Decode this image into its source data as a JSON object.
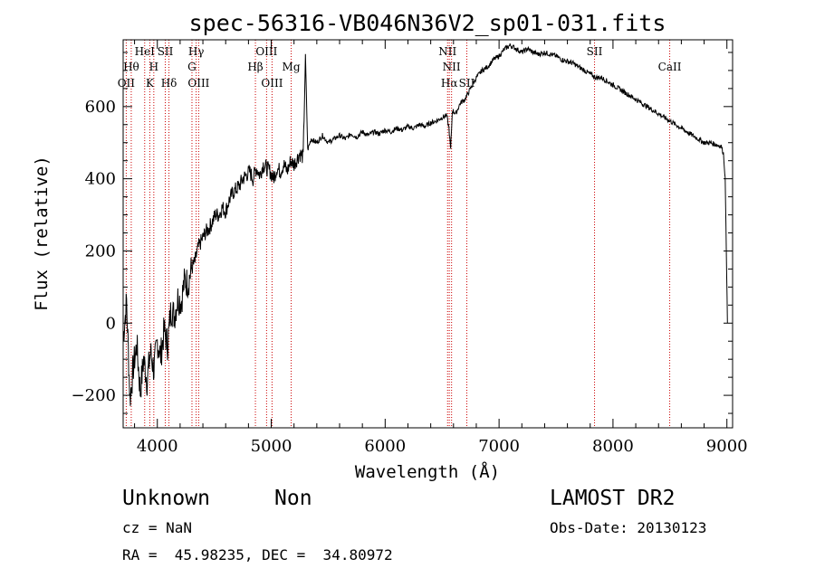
{
  "chart_data": {
    "type": "line",
    "title": "spec-56316-VB046N36V2_sp01-031.fits",
    "xlabel": "Wavelength (Å)",
    "ylabel": "Flux (relative)",
    "xlim": [
      3700,
      9050
    ],
    "ylim": [
      -290,
      785
    ],
    "xticks": [
      4000,
      5000,
      6000,
      7000,
      8000,
      9000
    ],
    "yticks": [
      -200,
      0,
      200,
      400,
      600
    ],
    "grid": false,
    "line_color": "#000000",
    "marker_color": "#cc0000",
    "series": [
      {
        "x": [
          3700,
          3730,
          3760,
          3790,
          3820,
          3850,
          3880,
          3910,
          3940,
          3970,
          4000,
          4030,
          4060,
          4090,
          4120,
          4150,
          4180,
          4210,
          4240,
          4270,
          4300,
          4330,
          4360,
          4390,
          4420,
          4450,
          4480,
          4510,
          4540,
          4570,
          4600,
          4630,
          4660,
          4690,
          4720,
          4750,
          4780,
          4810,
          4840,
          4870,
          4900,
          4930,
          4960,
          4990,
          5020,
          5050,
          5080,
          5110,
          5140,
          5170,
          5200,
          5250,
          5280,
          5300,
          5320,
          5350,
          5400,
          5450,
          5500,
          5550,
          5600,
          5650,
          5700,
          5750,
          5800,
          5850,
          5900,
          5950,
          6000,
          6050,
          6100,
          6150,
          6200,
          6250,
          6300,
          6350,
          6400,
          6450,
          6500,
          6540,
          6560,
          6575,
          6590,
          6620,
          6660,
          6700,
          6750,
          6800,
          6850,
          6900,
          6950,
          7000,
          7050,
          7100,
          7150,
          7200,
          7250,
          7300,
          7350,
          7400,
          7450,
          7500,
          7550,
          7600,
          7650,
          7700,
          7750,
          7800,
          7850,
          7900,
          7950,
          8000,
          8050,
          8100,
          8150,
          8200,
          8250,
          8300,
          8350,
          8400,
          8450,
          8500,
          8550,
          8600,
          8650,
          8700,
          8750,
          8800,
          8850,
          8900,
          8950,
          8970,
          8985,
          8995,
          9005
        ],
        "y": [
          -40,
          60,
          -210,
          -120,
          -60,
          -190,
          -100,
          -160,
          -80,
          -130,
          -50,
          -90,
          -20,
          -60,
          40,
          20,
          70,
          60,
          120,
          110,
          150,
          170,
          210,
          230,
          250,
          260,
          280,
          300,
          300,
          320,
          310,
          340,
          360,
          370,
          380,
          400,
          410,
          420,
          400,
          430,
          410,
          440,
          430,
          420,
          400,
          430,
          420,
          440,
          420,
          450,
          440,
          470,
          460,
          740,
          480,
          510,
          500,
          520,
          500,
          510,
          520,
          510,
          525,
          515,
          530,
          520,
          530,
          525,
          535,
          530,
          540,
          535,
          545,
          540,
          550,
          545,
          555,
          560,
          570,
          575,
          540,
          480,
          590,
          580,
          610,
          620,
          650,
          680,
          700,
          710,
          730,
          740,
          760,
          770,
          760,
          750,
          760,
          750,
          745,
          750,
          745,
          740,
          730,
          725,
          720,
          710,
          700,
          690,
          680,
          680,
          670,
          660,
          650,
          640,
          630,
          620,
          610,
          600,
          590,
          580,
          570,
          560,
          550,
          540,
          530,
          520,
          510,
          500,
          500,
          495,
          490,
          470,
          400,
          200,
          0
        ]
      }
    ],
    "line_markers": [
      {
        "x": 3727,
        "label": "OII",
        "row": 3
      },
      {
        "x": 3771,
        "label": "Hθ",
        "row": 2
      },
      {
        "x": 3889,
        "label": "HeI",
        "row": 1
      },
      {
        "x": 3934,
        "label": "K",
        "row": 3
      },
      {
        "x": 3969,
        "label": "H",
        "row": 2
      },
      {
        "x": 4070,
        "label": "SII",
        "row": 1
      },
      {
        "x": 4102,
        "label": "Hδ",
        "row": 3
      },
      {
        "x": 4304,
        "label": "G",
        "row": 2
      },
      {
        "x": 4341,
        "label": "Hγ",
        "row": 1
      },
      {
        "x": 4363,
        "label": "OIII",
        "row": 3
      },
      {
        "x": 4861,
        "label": "Hβ",
        "row": 2
      },
      {
        "x": 4959,
        "label": "OIII",
        "row": 1
      },
      {
        "x": 5007,
        "label": "OIII",
        "row": 3
      },
      {
        "x": 5175,
        "label": "Mg",
        "row": 2
      },
      {
        "x": 6548,
        "label": "NII",
        "row": 1
      },
      {
        "x": 6563,
        "label": "Hα",
        "row": 3
      },
      {
        "x": 6583,
        "label": "NII",
        "row": 2
      },
      {
        "x": 6717,
        "label": "SII",
        "row": 3
      },
      {
        "x": 7838,
        "label": "SII",
        "row": 1
      },
      {
        "x": 8498,
        "label": "CaII",
        "row": 2
      }
    ]
  },
  "info": {
    "class": "Unknown",
    "subclass": "Non",
    "survey": "LAMOST DR2",
    "cz": "cz = NaN",
    "obs_date": "Obs-Date: 20130123",
    "radec": "RA =  45.98235, DEC =  34.80972"
  }
}
